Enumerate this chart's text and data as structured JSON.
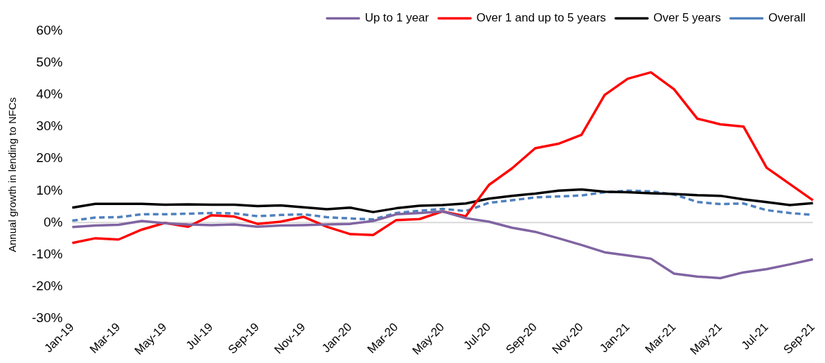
{
  "chart_data": {
    "type": "line",
    "ylabel": "Annual growth in lending to NFCs",
    "categories": [
      "Jan-19",
      null,
      "Mar-19",
      null,
      "May-19",
      null,
      "Jul-19",
      null,
      "Sep-19",
      null,
      "Nov-19",
      null,
      "Jan-20",
      null,
      "Mar-20",
      null,
      "May-20",
      null,
      "Jul-20",
      null,
      "Sep-20",
      null,
      "Nov-20",
      null,
      "Jan-21",
      null,
      "Mar-21",
      null,
      "May-21",
      null,
      "Jul-21",
      null,
      "Sep-21"
    ],
    "series": [
      {
        "name": "Up to 1 year",
        "color": "#8064a2",
        "values": [
          -1.4,
          -0.9,
          -0.7,
          0.5,
          -0.2,
          -0.6,
          -0.8,
          -0.6,
          -1.3,
          -0.9,
          -0.8,
          -0.6,
          -0.4,
          0.5,
          2.6,
          3.0,
          3.5,
          1.4,
          0.3,
          -1.6,
          -2.9,
          -4.9,
          -7.0,
          -9.3,
          -10.3,
          -11.3,
          -16.0,
          -16.9,
          -17.4,
          -15.6,
          -14.6,
          -13.1,
          -11.5
        ]
      },
      {
        "name": "Over 1 and up to 5 years",
        "color": "#ff0000",
        "values": [
          -6.4,
          -4.9,
          -5.3,
          -2.2,
          -0.1,
          -1.3,
          2.3,
          1.9,
          -0.4,
          0.3,
          1.8,
          -1.3,
          -3.6,
          -3.9,
          0.8,
          1.1,
          3.5,
          2.0,
          11.8,
          17.0,
          23.3,
          24.7,
          27.5,
          40.0,
          45.1,
          47.1,
          41.8,
          32.6,
          30.8,
          30.1,
          17.2,
          12.1,
          7.0
        ]
      },
      {
        "name": "Over 5 years",
        "color": "#000000",
        "values": [
          4.7,
          5.9,
          5.9,
          5.9,
          5.6,
          5.7,
          5.6,
          5.6,
          5.2,
          5.4,
          4.8,
          4.2,
          4.7,
          3.3,
          4.5,
          5.3,
          5.5,
          6.0,
          7.5,
          8.4,
          9.1,
          10.0,
          10.4,
          9.7,
          9.5,
          9.2,
          9.0,
          8.6,
          8.4,
          7.3,
          6.4,
          5.5,
          6.1
        ]
      },
      {
        "name": "Overall",
        "color": "#4f81bd",
        "line_style": "dashed",
        "values": [
          0.6,
          1.6,
          1.7,
          2.6,
          2.6,
          2.8,
          3.0,
          2.9,
          2.0,
          2.4,
          2.6,
          1.7,
          1.3,
          1.0,
          3.0,
          3.7,
          4.3,
          3.6,
          6.2,
          7.0,
          7.9,
          8.2,
          8.5,
          9.5,
          10.0,
          9.8,
          8.8,
          6.5,
          5.8,
          6.0,
          3.9,
          3.0,
          2.4
        ]
      }
    ],
    "ylim": [
      -30,
      60
    ],
    "yticks": [
      {
        "value": -30,
        "label": "-30%"
      },
      {
        "value": -20,
        "label": "-20%"
      },
      {
        "value": -10,
        "label": "-10%"
      },
      {
        "value": 0,
        "label": "0%"
      },
      {
        "value": 10,
        "label": "10%"
      },
      {
        "value": 20,
        "label": "20%"
      },
      {
        "value": 30,
        "label": "30%"
      },
      {
        "value": 40,
        "label": "40%"
      },
      {
        "value": 50,
        "label": "50%"
      },
      {
        "value": 60,
        "label": "60%"
      }
    ],
    "ref_lines": [
      {
        "axis": "y",
        "value": 0,
        "color": "#d9d9d9"
      }
    ],
    "grid": false,
    "legend": "top right",
    "marker": "none",
    "line_style": "solid"
  }
}
